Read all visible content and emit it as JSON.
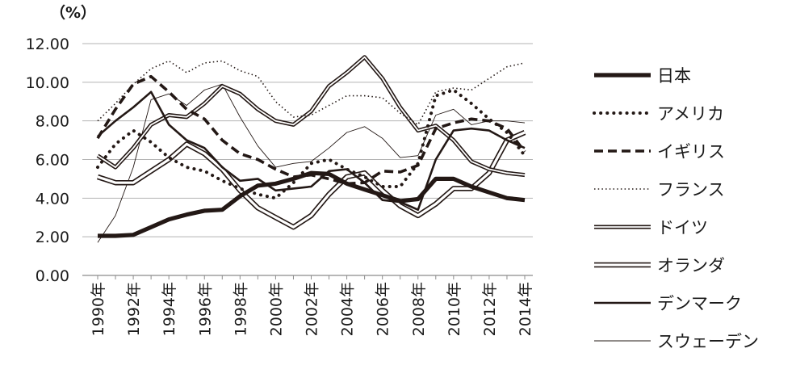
{
  "chart_data": {
    "type": "line",
    "unit_label": "（%）",
    "x": [
      1990,
      1991,
      1992,
      1993,
      1994,
      1995,
      1996,
      1997,
      1998,
      1999,
      2000,
      2001,
      2002,
      2003,
      2004,
      2005,
      2006,
      2007,
      2008,
      2009,
      2010,
      2011,
      2012,
      2013,
      2014
    ],
    "x_tick_labels": [
      "1990年",
      "1992年",
      "1994年",
      "1996年",
      "1998年",
      "2000年",
      "2002年",
      "2004年",
      "2006年",
      "2008年",
      "2010年",
      "2012年",
      "2014年"
    ],
    "y_ticks": [
      "0.00",
      "2.00",
      "4.00",
      "6.00",
      "8.00",
      "10.00",
      "12.00"
    ],
    "ylim": [
      0,
      12
    ],
    "grid": true,
    "legend_position": "right",
    "series": [
      {
        "name": "日本",
        "style": "thick",
        "values": [
          2.05,
          2.05,
          2.1,
          2.5,
          2.9,
          3.15,
          3.35,
          3.4,
          4.1,
          4.65,
          4.75,
          5.0,
          5.3,
          5.25,
          4.75,
          4.45,
          4.15,
          3.85,
          3.95,
          5.0,
          5.0,
          4.6,
          4.3,
          4.0,
          3.9
        ]
      },
      {
        "name": "アメリカ",
        "style": "dotted",
        "values": [
          5.6,
          6.8,
          7.5,
          6.9,
          6.1,
          5.6,
          5.4,
          4.9,
          4.5,
          4.2,
          4.0,
          4.8,
          5.8,
          6.0,
          5.5,
          5.1,
          4.6,
          4.6,
          5.8,
          9.3,
          9.6,
          8.9,
          8.1,
          7.4,
          6.2
        ]
      },
      {
        "name": "イギリス",
        "style": "dashed",
        "values": [
          7.1,
          8.6,
          9.9,
          10.3,
          9.5,
          8.6,
          8.1,
          7.0,
          6.3,
          6.0,
          5.5,
          5.1,
          5.2,
          5.0,
          4.75,
          4.8,
          5.4,
          5.35,
          5.7,
          7.6,
          7.9,
          8.1,
          8.0,
          7.6,
          6.4
        ]
      },
      {
        "name": "フランス",
        "style": "fine-dotted",
        "values": [
          8.0,
          8.9,
          9.9,
          10.7,
          11.1,
          10.5,
          11.0,
          11.1,
          10.6,
          10.3,
          9.0,
          8.2,
          8.3,
          8.8,
          9.3,
          9.3,
          9.2,
          8.4,
          7.8,
          9.5,
          9.7,
          9.6,
          10.2,
          10.8,
          11.0
        ]
      },
      {
        "name": "ドイツ",
        "style": "double-thin",
        "values": [
          6.2,
          5.6,
          6.6,
          7.8,
          8.3,
          8.2,
          8.9,
          9.8,
          9.4,
          8.6,
          8.0,
          7.8,
          8.5,
          9.8,
          10.5,
          11.3,
          10.2,
          8.7,
          7.5,
          7.75,
          7.0,
          5.9,
          5.5,
          5.3,
          5.2
        ]
      },
      {
        "name": "オランダ",
        "style": "double-wide",
        "values": [
          5.1,
          4.8,
          4.8,
          5.4,
          6.0,
          6.8,
          6.3,
          5.5,
          4.4,
          3.5,
          3.0,
          2.5,
          3.1,
          4.2,
          5.1,
          5.3,
          4.4,
          3.6,
          3.1,
          3.7,
          4.5,
          4.5,
          5.3,
          7.0,
          7.4
        ]
      },
      {
        "name": "デンマーク",
        "style": "medium",
        "values": [
          7.2,
          8.0,
          8.7,
          9.5,
          7.8,
          7.0,
          6.6,
          5.6,
          4.9,
          5.0,
          4.4,
          4.5,
          4.6,
          5.4,
          5.5,
          4.8,
          3.9,
          3.8,
          3.4,
          6.0,
          7.5,
          7.6,
          7.5,
          7.0,
          6.6
        ]
      },
      {
        "name": "スウェーデン",
        "style": "thin",
        "values": [
          1.7,
          3.1,
          5.6,
          9.1,
          9.4,
          8.8,
          9.6,
          9.9,
          8.2,
          6.7,
          5.6,
          5.8,
          5.9,
          6.6,
          7.4,
          7.7,
          7.1,
          6.1,
          6.2,
          8.3,
          8.6,
          7.8,
          8.0,
          8.0,
          7.9
        ]
      }
    ]
  }
}
